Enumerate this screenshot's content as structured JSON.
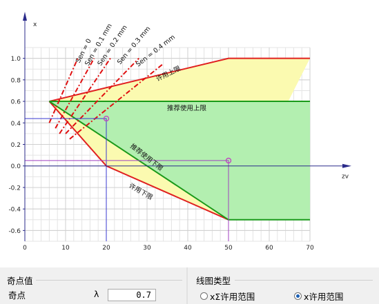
{
  "chart_data": {
    "type": "line",
    "xlabel": "zv",
    "ylabel": "x",
    "xlim": [
      0,
      70
    ],
    "ylim": [
      -0.7,
      1.1
    ],
    "x_ticks": [
      0,
      10,
      20,
      30,
      40,
      50,
      60,
      70
    ],
    "x_tick_labels": [
      "0",
      "10",
      "20",
      "30",
      "40",
      "50",
      "60",
      "70"
    ],
    "y_ticks": [
      -0.6,
      -0.4,
      -0.2,
      0.0,
      0.2,
      0.4,
      0.6,
      0.8,
      1.0
    ],
    "y_tick_labels": [
      "-0.6",
      "-0.4",
      "-0.2",
      "0.0",
      "0.2",
      "0.4",
      "0.6",
      "0.8",
      "1.0"
    ],
    "grid": true,
    "series": [
      {
        "name": "",
        "color": "#e02020",
        "x": [
          6,
          50,
          70
        ],
        "y": [
          0.6,
          1.0,
          1.0
        ]
      },
      {
        "name": "",
        "color": "#e02020",
        "x": [
          6,
          20,
          50
        ],
        "y": [
          0.6,
          0.0,
          -0.5
        ]
      },
      {
        "name": "",
        "color": "#1a9a1a",
        "x": [
          6,
          70
        ],
        "y": [
          0.6,
          0.6
        ]
      },
      {
        "name": "",
        "color": "#1a9a1a",
        "x": [
          6,
          50,
          70
        ],
        "y": [
          0.6,
          -0.5,
          -0.5
        ]
      }
    ],
    "sen_lines": [
      {
        "x": [
          6.0,
          13.0
        ],
        "y": [
          0.4,
          1.0
        ]
      },
      {
        "x": [
          7.5,
          17.0
        ],
        "y": [
          0.35,
          1.0
        ]
      },
      {
        "x": [
          8.5,
          21.0
        ],
        "y": [
          0.3,
          1.0
        ]
      },
      {
        "x": [
          10.0,
          28.0
        ],
        "y": [
          0.3,
          1.0
        ]
      },
      {
        "x": [
          11.0,
          34.0
        ],
        "y": [
          0.25,
          0.95
        ]
      }
    ],
    "markers": [
      {
        "x": 20,
        "y": 0.44,
        "color": "#3a3ad0"
      },
      {
        "x": 50,
        "y": 0.05,
        "color": "#a040c0"
      }
    ],
    "annotations": [
      "Sen = 0",
      "Sen = 0.1 mm",
      "Sen = 0.2 mm",
      "Sen = 0.3 mm",
      "Sen = 0.4 mm",
      "许用上限",
      "推荐使用上限",
      "推荐使用下限",
      "许用下限"
    ]
  },
  "panel": {
    "group_title": "奇点值",
    "field_label": "奇点",
    "lambda_symbol": "λ",
    "lambda_value": "0.7"
  },
  "line_type": {
    "group_title": "线图类型",
    "options": [
      {
        "label": "xΣ许用范围",
        "selected": false
      },
      {
        "label": "x许用范围",
        "selected": true
      }
    ]
  }
}
